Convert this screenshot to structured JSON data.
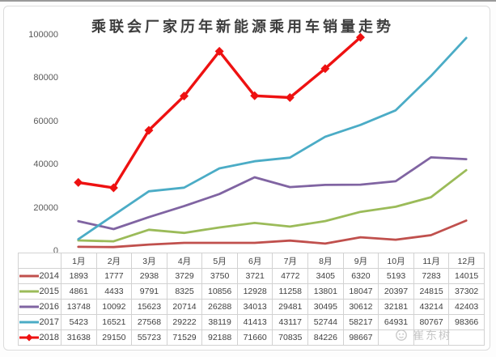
{
  "title": "乘联会厂家历年新能源乘用车销量走势",
  "watermark": {
    "text": "崔东树",
    "icon": "smiley-face-icon"
  },
  "chart_data": {
    "type": "line",
    "title": "乘联会厂家历年新能源乘用车销量走势",
    "xlabel": "",
    "ylabel": "",
    "categories": [
      "1月",
      "2月",
      "3月",
      "4月",
      "5月",
      "6月",
      "7月",
      "8月",
      "9月",
      "10月",
      "11月",
      "12月"
    ],
    "series": [
      {
        "name": "2014",
        "color": "#c0504d",
        "marker": "none",
        "values": [
          1893,
          1777,
          2938,
          3729,
          3750,
          3721,
          4772,
          3405,
          6320,
          5193,
          7283,
          14015
        ]
      },
      {
        "name": "2015",
        "color": "#9bbb59",
        "marker": "none",
        "values": [
          4861,
          4433,
          9791,
          8325,
          10856,
          12928,
          11258,
          13801,
          18047,
          20397,
          24815,
          37302
        ]
      },
      {
        "name": "2016",
        "color": "#8064a2",
        "marker": "none",
        "values": [
          13748,
          10092,
          15623,
          20714,
          26288,
          34013,
          29481,
          30495,
          30612,
          32181,
          43214,
          42403
        ]
      },
      {
        "name": "2017",
        "color": "#4bacc6",
        "marker": "none",
        "values": [
          5423,
          16521,
          27568,
          29222,
          38119,
          41413,
          43117,
          52744,
          58217,
          64931,
          80767,
          98366
        ]
      },
      {
        "name": "2018",
        "color": "#ee1111",
        "marker": "diamond",
        "values": [
          31638,
          29150,
          55723,
          71529,
          92188,
          71660,
          70835,
          84226,
          98667,
          null,
          null,
          null
        ]
      }
    ],
    "ylim": [
      0,
      100000
    ],
    "yticks": [
      0,
      20000,
      40000,
      60000,
      80000,
      100000
    ],
    "ytick_labels": [
      "0",
      "20000",
      "40000",
      "60000",
      "80000",
      "100000"
    ],
    "grid": false,
    "legend_position": "table-left",
    "data_table_shown": true
  }
}
